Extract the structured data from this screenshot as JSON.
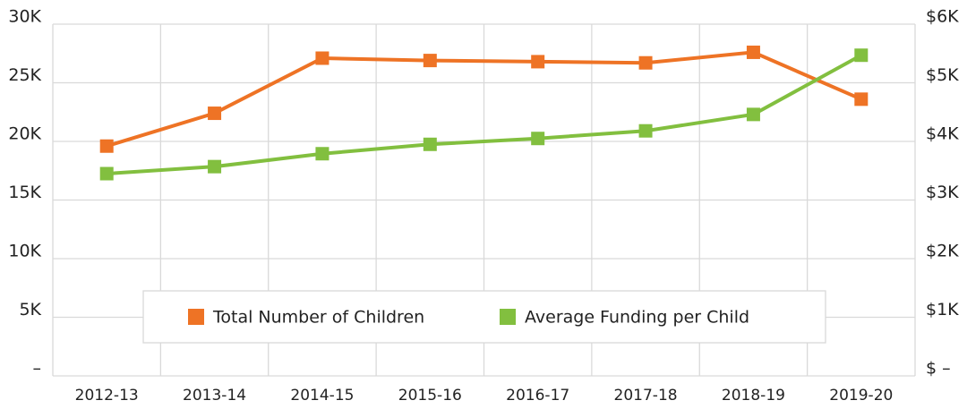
{
  "chart_data": {
    "type": "line",
    "categories": [
      "2012-13",
      "2013-14",
      "2014-15",
      "2015-16",
      "2016-17",
      "2017-18",
      "2018-19",
      "2019-20"
    ],
    "series": [
      {
        "name": "Total Number of Children",
        "color": "#ee7325",
        "axis": "y",
        "values": [
          19600,
          22400,
          27100,
          26900,
          26800,
          26700,
          27600,
          23600
        ]
      },
      {
        "name": "Average Funding per Child",
        "color": "#82bf3f",
        "axis": "y2",
        "values": [
          3450,
          3570,
          3790,
          3950,
          4050,
          4180,
          4460,
          5470
        ]
      }
    ],
    "ylim": [
      0,
      30000
    ],
    "yticks": [
      {
        "value": 0,
        "label": "–"
      },
      {
        "value": 5000,
        "label": "5K"
      },
      {
        "value": 10000,
        "label": "10K"
      },
      {
        "value": 15000,
        "label": "15K"
      },
      {
        "value": 20000,
        "label": "20K"
      },
      {
        "value": 25000,
        "label": "25K"
      },
      {
        "value": 30000,
        "label": "30K"
      }
    ],
    "y2lim": [
      0,
      6000
    ],
    "y2ticks": [
      {
        "value": 0,
        "label": "$ –"
      },
      {
        "value": 1000,
        "label": "$1K"
      },
      {
        "value": 2000,
        "label": "$2K"
      },
      {
        "value": 3000,
        "label": "$3K"
      },
      {
        "value": 4000,
        "label": "$4K"
      },
      {
        "value": 5000,
        "label": "$5K"
      },
      {
        "value": 6000,
        "label": "$6K"
      }
    ],
    "grid": true,
    "legend": "bottom"
  }
}
